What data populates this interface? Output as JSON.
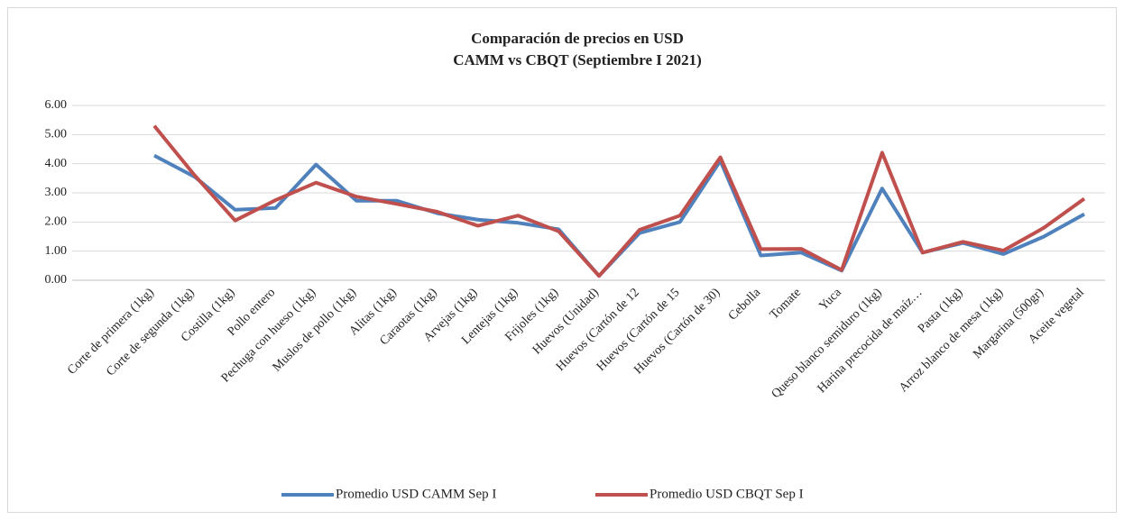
{
  "chart_data": {
    "type": "line",
    "title": "Comparación de precios en USD",
    "subtitle": "CAMM vs CBQT (Septiembre I 2021)",
    "categories": [
      "Corte de primera (1kg)",
      "Corte de segunda (1kg)",
      "Costilla (1kg)",
      "Pollo entero",
      "Pechuga con hueso (1kg)",
      "Muslos de pollo (1kg)",
      "Alitas (1kg)",
      "Caraotas (1kg)",
      "Arvejas (1kg)",
      "Lentejas (1kg)",
      "Frijoles (1kg)",
      "Huevos (Unidad)",
      "Huevos (Cartón de 12",
      "Huevos (Cartón de 15",
      "Huevos (Cartón de 30)",
      "Cebolla",
      "Tomate",
      "Yuca",
      "Queso blanco semiduro (1kg)",
      "Harina precocida de maíz…",
      "Pasta (1kg)",
      "Arroz blanco de mesa (1kg)",
      "Margarina (500gr)",
      "Aceite vegetal"
    ],
    "series": [
      {
        "name": "Promedio USD CAMM Sep I",
        "color": "#4f81bd",
        "values": [
          4.28,
          3.55,
          2.42,
          2.48,
          3.97,
          2.73,
          2.73,
          2.3,
          2.08,
          1.97,
          1.75,
          0.15,
          1.62,
          2.0,
          4.1,
          0.85,
          0.95,
          0.33,
          3.15,
          0.95,
          1.28,
          0.9,
          1.5,
          2.27
        ]
      },
      {
        "name": "Promedio USD CBQT Sep I",
        "color": "#c0504d",
        "values": [
          5.3,
          3.6,
          2.05,
          2.75,
          3.35,
          2.87,
          2.62,
          2.35,
          1.87,
          2.22,
          1.68,
          0.15,
          1.73,
          2.22,
          4.22,
          1.07,
          1.08,
          0.35,
          4.38,
          0.95,
          1.32,
          1.02,
          1.8,
          2.8
        ]
      }
    ],
    "ylim": [
      0,
      6
    ],
    "yticks": [
      {
        "value": 0,
        "label": "0.00"
      },
      {
        "value": 1,
        "label": "1.00"
      },
      {
        "value": 2,
        "label": "2.00"
      },
      {
        "value": 3,
        "label": "3.00"
      },
      {
        "value": 4,
        "label": "4.00"
      },
      {
        "value": 5,
        "label": "5.00"
      },
      {
        "value": 6,
        "label": "6.00"
      }
    ],
    "grid": true,
    "legend": "bottom"
  }
}
